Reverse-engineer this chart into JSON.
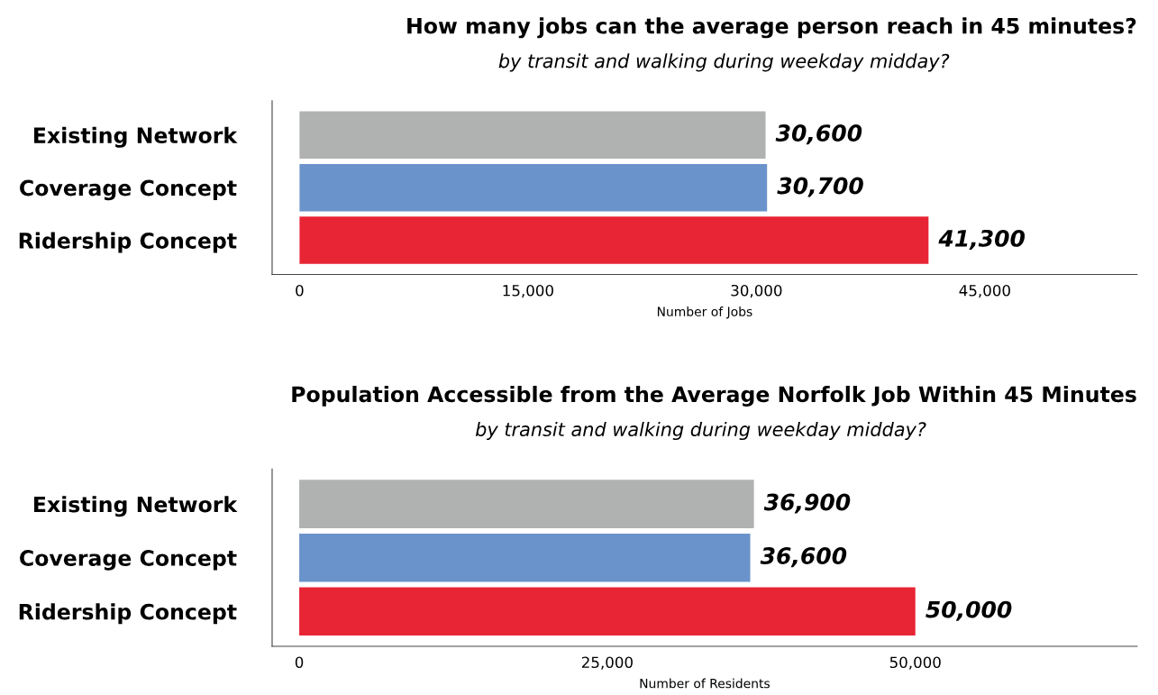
{
  "chart_data": [
    {
      "type": "bar",
      "orientation": "horizontal",
      "title": "How many jobs can the average person reach in 45 minutes?",
      "subtitle": "by transit and walking during weekday midday?",
      "xlabel": "Number of Jobs",
      "categories": [
        "Existing Network",
        "Coverage Concept",
        "Ridership Concept"
      ],
      "values": [
        30600,
        30700,
        41300
      ],
      "colors": [
        "#b0b1b1",
        "#6a93cb",
        "#e82535"
      ],
      "value_labels": [
        "30,600",
        "30,700",
        "41,300"
      ],
      "xlim": [
        -1800,
        55000
      ],
      "xticks": [
        0,
        {
          "value": 15000,
          "label": "15,000"
        },
        {
          "value": 30000,
          "label": "30,000"
        },
        {
          "value": 45000,
          "label": "45,000"
        }
      ],
      "grid": false,
      "legend": false
    },
    {
      "type": "bar",
      "orientation": "horizontal",
      "title": "Population Accessible from the Average Norfolk Job Within 45 Minutes",
      "subtitle": "by transit and walking during weekday midday?",
      "xlabel": "Number of Residents",
      "categories": [
        "Existing Network",
        "Coverage Concept",
        "Ridership Concept"
      ],
      "values": [
        36900,
        36600,
        50000
      ],
      "colors": [
        "#b0b1b1",
        "#6a93cb",
        "#e82535"
      ],
      "value_labels": [
        "36,900",
        "36,600",
        "50,000"
      ],
      "xlim": [
        -2200,
        68000
      ],
      "xticks": [
        0,
        {
          "value": 25000,
          "label": "25,000"
        },
        {
          "value": 50000,
          "label": "50,000"
        }
      ],
      "grid": false,
      "legend": false
    }
  ]
}
